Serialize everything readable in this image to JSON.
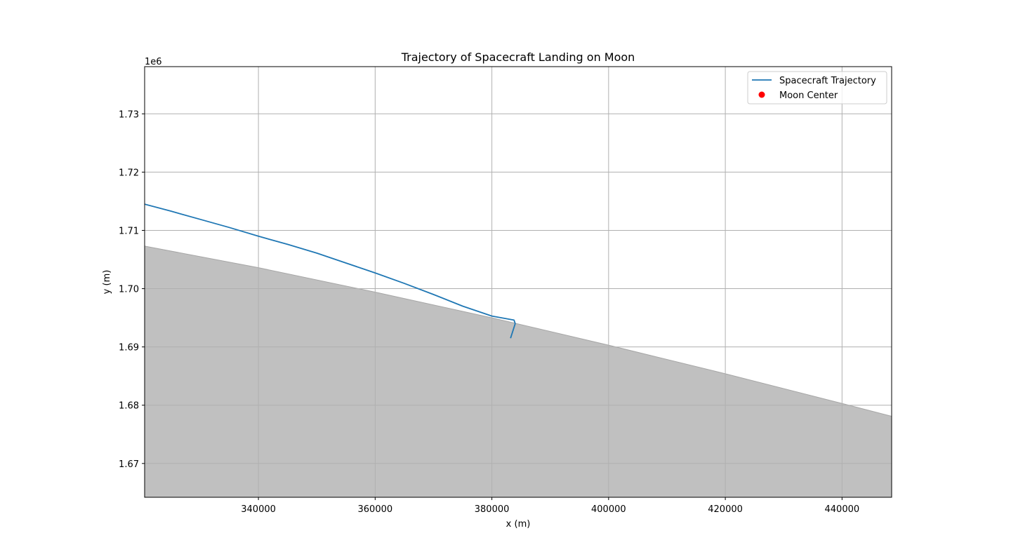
{
  "chart_data": {
    "type": "line",
    "title": "Trajectory of Spacecraft Landing on Moon",
    "xlabel": "x (m)",
    "ylabel": "y (m)",
    "y_offset_label": "1e6",
    "xlim": [
      320500,
      448500
    ],
    "ylim": [
      1664200,
      1738100
    ],
    "x_ticks": [
      340000,
      360000,
      380000,
      400000,
      420000,
      440000
    ],
    "x_tick_labels": [
      "340000",
      "360000",
      "380000",
      "400000",
      "420000",
      "440000"
    ],
    "y_ticks": [
      1670000,
      1680000,
      1690000,
      1700000,
      1710000,
      1720000,
      1730000
    ],
    "y_tick_labels": [
      "1.67",
      "1.68",
      "1.69",
      "1.70",
      "1.71",
      "1.72",
      "1.73"
    ],
    "grid": true,
    "legend_position": "top-right",
    "series": [
      {
        "name": "Spacecraft Trajectory",
        "color": "#1f77b4",
        "x": [
          320500,
          325000,
          330000,
          335000,
          340000,
          345000,
          350000,
          355000,
          360000,
          365000,
          370000,
          375000,
          380000,
          383800,
          384000,
          383200
        ],
        "y": [
          1714500,
          1713300,
          1711900,
          1710500,
          1709000,
          1707600,
          1706100,
          1704400,
          1702700,
          1700900,
          1699000,
          1697000,
          1695300,
          1694600,
          1694000,
          1691500
        ]
      },
      {
        "name": "Moon Center",
        "color": "#ff0000",
        "marker": "circle",
        "x": [],
        "y": []
      }
    ],
    "moon_surface": {
      "fill_color": "#c0c0c0",
      "edge_color": "#a6a6a6",
      "x": [
        320500,
        340000,
        360000,
        380000,
        400000,
        420000,
        440000,
        448500
      ],
      "y": [
        1707300,
        1703600,
        1699400,
        1695000,
        1690300,
        1685400,
        1680300,
        1678100
      ]
    }
  }
}
